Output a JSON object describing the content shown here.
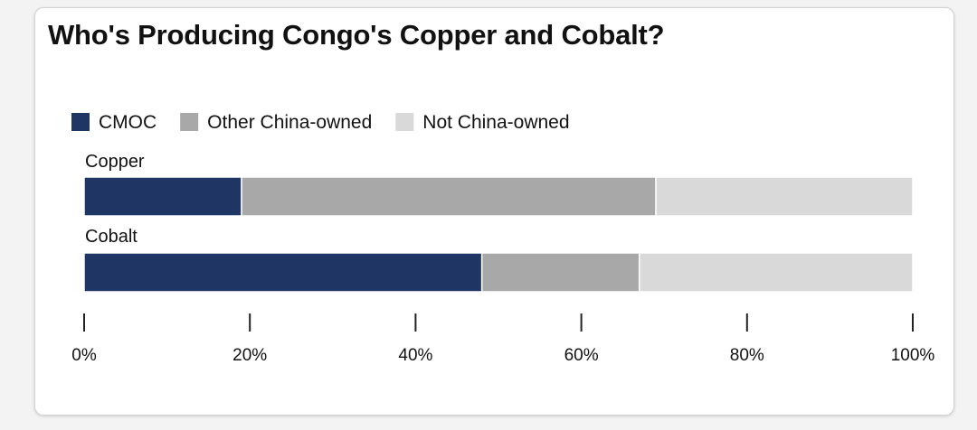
{
  "chart_data": {
    "type": "bar",
    "orientation": "horizontal",
    "stacked": true,
    "title": "Who's Producing Congo's Copper and Cobalt?",
    "categories": [
      "Copper",
      "Cobalt"
    ],
    "series": [
      {
        "name": "CMOC",
        "color": "#1f3665",
        "values": [
          19,
          48
        ]
      },
      {
        "name": "Other China-owned",
        "color": "#a8a8a8",
        "values": [
          50,
          19
        ]
      },
      {
        "name": "Not China-owned",
        "color": "#d9d9d9",
        "values": [
          31,
          33
        ]
      }
    ],
    "xlim": [
      0,
      100
    ],
    "xticks": [
      0,
      20,
      40,
      60,
      80,
      100
    ],
    "xtick_labels": [
      "0%",
      "20%",
      "40%",
      "60%",
      "80%",
      "100%"
    ],
    "legend_position": "top-left",
    "grid": false
  }
}
